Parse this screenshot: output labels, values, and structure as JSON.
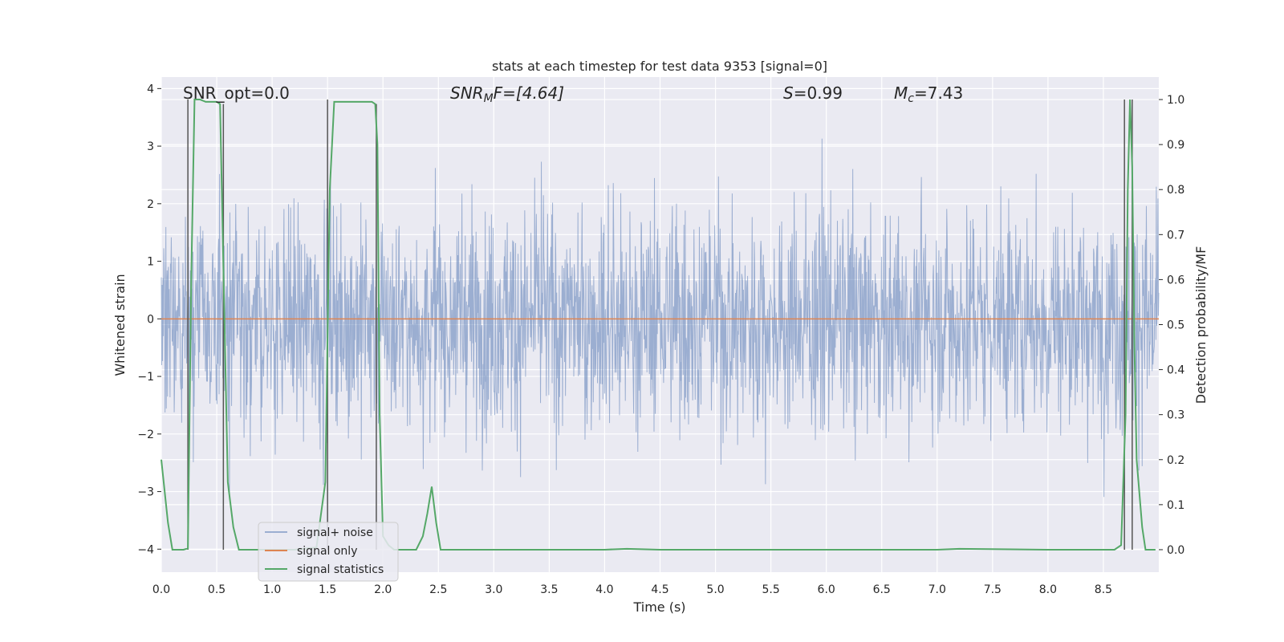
{
  "chart_data": {
    "type": "line",
    "title": "stats at each timestep for test data 9353 [signal=0]",
    "xlabel": "Time (s)",
    "ylabel_left": "Whitened strain",
    "ylabel_right": "Detection probability/MF",
    "xlim": [
      0.0,
      9.0
    ],
    "ylim_left": [
      -4.4,
      4.2
    ],
    "ylim_right": [
      -0.05,
      1.05
    ],
    "x_ticks": [
      0.0,
      0.5,
      1.0,
      1.5,
      2.0,
      2.5,
      3.0,
      3.5,
      4.0,
      4.5,
      5.0,
      5.5,
      6.0,
      6.5,
      7.0,
      7.5,
      8.0,
      8.5
    ],
    "x_tick_labels": [
      "0.0",
      "0.5",
      "1.0",
      "1.5",
      "2.0",
      "2.5",
      "3.0",
      "3.5",
      "4.0",
      "4.5",
      "5.0",
      "5.5",
      "6.0",
      "6.5",
      "7.0",
      "7.5",
      "8.0",
      "8.5"
    ],
    "y_left_ticks": [
      -4,
      -3,
      -2,
      -1,
      0,
      1,
      2,
      3,
      4
    ],
    "y_left_tick_labels": [
      "−4",
      "−3",
      "−2",
      "−1",
      "0",
      "1",
      "2",
      "3",
      "4"
    ],
    "y_right_ticks": [
      0.0,
      0.1,
      0.2,
      0.3,
      0.4,
      0.5,
      0.6,
      0.7,
      0.8,
      0.9,
      1.0
    ],
    "y_right_tick_labels": [
      "0.0",
      "0.1",
      "0.2",
      "0.3",
      "0.4",
      "0.5",
      "0.6",
      "0.7",
      "0.8",
      "0.9",
      "1.0"
    ],
    "annotations": {
      "snr_opt": "SNR_opt=0.0",
      "snr_mf_base": "SNR",
      "snr_mf_sub": "M",
      "snr_mf_rest": "F=[4.64]",
      "s_label": "S",
      "s_value": "=0.99",
      "mc_base": "M",
      "mc_sub": "c",
      "mc_value": "=7.43"
    },
    "series": [
      {
        "name": "signal+ noise",
        "color": "#4c72b0",
        "axis": "left",
        "description": "noisy whitened strain",
        "amplitude_core": 1.3,
        "peak_max": [
          3.8,
          -4.0
        ]
      },
      {
        "name": "signal only",
        "color": "#dd8452",
        "axis": "left",
        "x": [
          0.0,
          9.0
        ],
        "y": [
          0.0,
          0.0
        ]
      },
      {
        "name": "signal statistics",
        "color": "#55a868",
        "axis": "right",
        "x": [
          0.0,
          0.06,
          0.1,
          0.15,
          0.2,
          0.24,
          0.27,
          0.3,
          0.35,
          0.4,
          0.45,
          0.5,
          0.53,
          0.55,
          0.6,
          0.65,
          0.7,
          1.0,
          1.2,
          1.4,
          1.48,
          1.52,
          1.56,
          1.6,
          1.7,
          1.8,
          1.9,
          1.93,
          1.95,
          1.97,
          2.0,
          2.05,
          2.1,
          2.3,
          2.36,
          2.4,
          2.44,
          2.48,
          2.52,
          2.6,
          3.0,
          4.0,
          4.2,
          4.5,
          5.0,
          6.0,
          7.0,
          7.2,
          8.0,
          8.6,
          8.66,
          8.7,
          8.72,
          8.74,
          8.76,
          8.78,
          8.8,
          8.85,
          8.88,
          8.92,
          8.97
        ],
        "y": [
          0.2,
          0.06,
          0.0,
          0.0,
          0.0,
          0.003,
          0.6,
          1.0,
          1.0,
          0.995,
          0.995,
          0.995,
          0.99,
          0.75,
          0.15,
          0.05,
          0.0,
          0.0,
          0.0,
          0.005,
          0.15,
          0.8,
          0.995,
          0.995,
          0.995,
          0.995,
          0.995,
          0.99,
          0.9,
          0.3,
          0.03,
          0.01,
          0.0,
          0.0,
          0.03,
          0.08,
          0.14,
          0.06,
          0.0,
          0.0,
          0.0,
          0.0,
          0.002,
          0.0,
          0.0,
          0.0,
          0.0,
          0.002,
          0.0,
          0.0,
          0.01,
          0.3,
          0.8,
          1.0,
          0.85,
          0.45,
          0.2,
          0.05,
          0.0,
          0.0,
          0.0
        ]
      }
    ],
    "vertical_lines": [
      {
        "x": 0.24,
        "y_top": 1.0,
        "y_bottom": 0.0
      },
      {
        "x": 0.56,
        "y_top": 0.99,
        "y_bottom": 0.0
      },
      {
        "x": 1.5,
        "y_top": 1.0,
        "y_bottom": 0.0
      },
      {
        "x": 1.94,
        "y_top": 0.99,
        "y_bottom": 0.0
      },
      {
        "x": 8.69,
        "y_top": 1.0,
        "y_bottom": 0.0
      },
      {
        "x": 8.76,
        "y_top": 1.0,
        "y_bottom": 0.0
      }
    ],
    "legend": {
      "placement": "lower-left",
      "entries": [
        {
          "label": "signal+ noise",
          "color": "#4c72b0"
        },
        {
          "label": "signal only",
          "color": "#dd8452"
        },
        {
          "label": "signal statistics",
          "color": "#55a868"
        }
      ]
    },
    "colors": {
      "background": "#eaeaf2",
      "grid": "#ffffff",
      "vline": "#555555"
    }
  }
}
